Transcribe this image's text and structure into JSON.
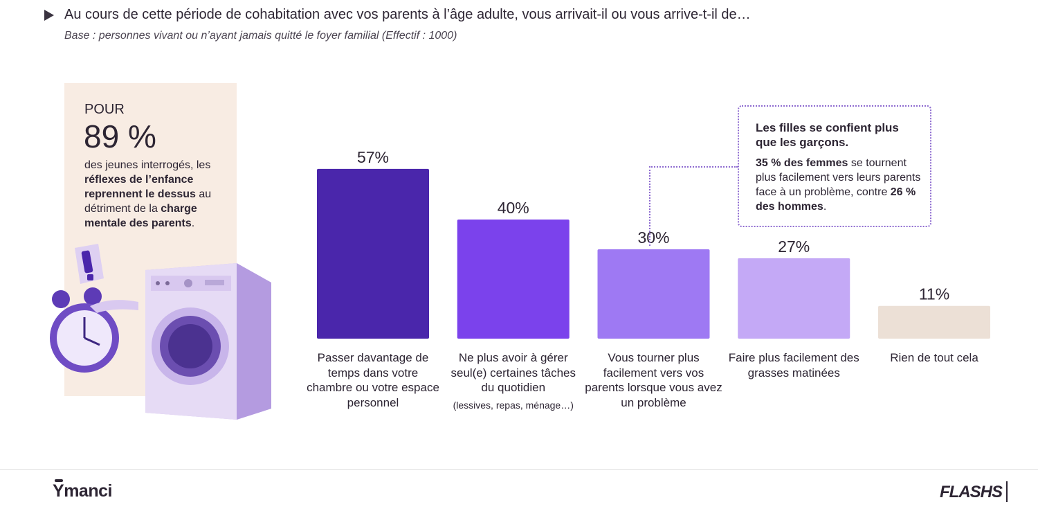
{
  "header": {
    "title": "Au cours de cette période de cohabitation avec vos parents à l’âge adulte, vous arrivait-il ou vous arrive-t-il de…",
    "subtitle": "Base : personnes vivant ou n’ayant jamais quitté le foyer familial (Effectif : 1000)"
  },
  "infobox": {
    "pour": "POUR",
    "pct": "89 %",
    "text_1": "des jeunes interrogés, les ",
    "text_bold_1": "réflexes de l’enfance reprennent le dessus",
    "text_2": " au détriment de la ",
    "text_bold_2": "charge mentale des parents",
    "text_3": "."
  },
  "chart_data": {
    "type": "bar",
    "categories": [
      "Passer davantage de temps dans votre chambre ou votre espace personnel",
      "Ne plus avoir à gérer seul(e) certaines tâches du quotidien",
      "Vous tourner plus facilement vers vos parents lorsque vous avez un problème",
      "Faire plus facilement des grasses matinées",
      "Rien de tout cela"
    ],
    "notes": [
      "",
      "(lessives, repas, ménage…)",
      "",
      "",
      ""
    ],
    "values": [
      57,
      40,
      30,
      27,
      11
    ],
    "value_labels": [
      "57%",
      "40%",
      "30%",
      "27%",
      "11%"
    ],
    "colors": [
      "#4a26ab",
      "#7b42ec",
      "#9e79f3",
      "#c4a9f6",
      "#ece0d6"
    ],
    "ylim": [
      0,
      60
    ]
  },
  "callout": {
    "heading": "Les filles se confient plus que les garçons.",
    "bold_1": "35 % des femmes",
    "text_1": " se tournent plus facilement vers leurs parents face à un problème, contre ",
    "bold_2": "26 % des hommes",
    "text_2": "."
  },
  "footer": {
    "brand_left": "manci",
    "brand_left_initial": "Y",
    "brand_right": "FLASHS"
  }
}
